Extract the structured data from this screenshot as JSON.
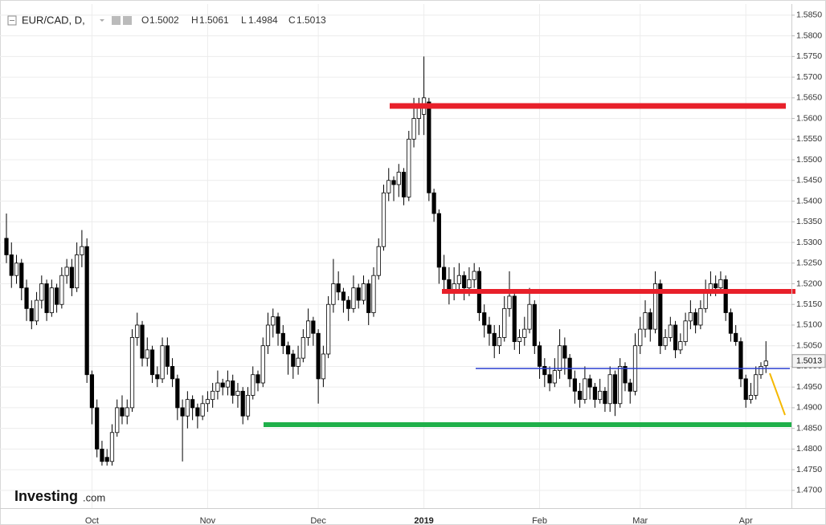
{
  "chart_data": {
    "type": "candlestick",
    "title": "EUR/CAD, D,",
    "ohlc_labels": [
      "O",
      "H",
      "L",
      "C"
    ],
    "up_color": "#ffffff",
    "down_color": "#000000",
    "grid": true,
    "logo": "Investing",
    "logo_suffix": ".com",
    "ylim": [
      1.4657,
      1.5877
    ],
    "yticks": [
      {
        "value": 1.47,
        "label": "1.4700"
      },
      {
        "value": 1.475,
        "label": "1.4750"
      },
      {
        "value": 1.48,
        "label": "1.4800"
      },
      {
        "value": 1.485,
        "label": "1.4850"
      },
      {
        "value": 1.49,
        "label": "1.4900"
      },
      {
        "value": 1.495,
        "label": "1.4950"
      },
      {
        "value": 1.5,
        "label": "1.5000"
      },
      {
        "value": 1.505,
        "label": "1.5050"
      },
      {
        "value": 1.51,
        "label": "1.5100"
      },
      {
        "value": 1.515,
        "label": "1.5150"
      },
      {
        "value": 1.52,
        "label": "1.5200"
      },
      {
        "value": 1.525,
        "label": "1.5250"
      },
      {
        "value": 1.53,
        "label": "1.5300"
      },
      {
        "value": 1.535,
        "label": "1.5350"
      },
      {
        "value": 1.54,
        "label": "1.5400"
      },
      {
        "value": 1.545,
        "label": "1.5450"
      },
      {
        "value": 1.55,
        "label": "1.5500"
      },
      {
        "value": 1.555,
        "label": "1.5550"
      },
      {
        "value": 1.56,
        "label": "1.5600"
      },
      {
        "value": 1.565,
        "label": "1.5650"
      },
      {
        "value": 1.57,
        "label": "1.5700"
      },
      {
        "value": 1.575,
        "label": "1.5750"
      },
      {
        "value": 1.58,
        "label": "1.5800"
      },
      {
        "value": 1.585,
        "label": "1.5850"
      }
    ],
    "categories": [
      null,
      null,
      null,
      null,
      null,
      null,
      null,
      null,
      null,
      null,
      null,
      null,
      null,
      null,
      null,
      null,
      null,
      "Oct",
      null,
      null,
      null,
      null,
      null,
      null,
      null,
      null,
      null,
      null,
      null,
      null,
      null,
      null,
      null,
      null,
      null,
      null,
      null,
      null,
      null,
      null,
      "Nov",
      null,
      null,
      null,
      null,
      null,
      null,
      null,
      null,
      null,
      null,
      null,
      null,
      null,
      null,
      null,
      null,
      null,
      null,
      null,
      null,
      null,
      "Dec",
      null,
      null,
      null,
      null,
      null,
      null,
      null,
      null,
      null,
      null,
      null,
      null,
      null,
      null,
      null,
      null,
      null,
      null,
      null,
      null,
      "2019",
      null,
      null,
      null,
      null,
      null,
      null,
      null,
      null,
      null,
      null,
      null,
      null,
      null,
      null,
      null,
      null,
      null,
      null,
      null,
      null,
      null,
      null,
      "Feb",
      null,
      null,
      null,
      null,
      null,
      null,
      null,
      null,
      null,
      null,
      null,
      null,
      null,
      null,
      null,
      null,
      null,
      null,
      null,
      "Mar",
      null,
      null,
      null,
      null,
      null,
      null,
      null,
      null,
      null,
      null,
      null,
      null,
      null,
      null,
      null,
      null,
      null,
      null,
      null,
      null,
      "Apr",
      null,
      null,
      null,
      null
    ],
    "ohlc": [
      [
        1.531,
        1.537,
        1.525,
        1.527
      ],
      [
        1.527,
        1.53,
        1.519,
        1.522
      ],
      [
        1.522,
        1.527,
        1.52,
        1.525
      ],
      [
        1.525,
        1.526,
        1.516,
        1.519
      ],
      [
        1.519,
        1.521,
        1.511,
        1.514
      ],
      [
        1.514,
        1.516,
        1.509,
        1.511
      ],
      [
        1.511,
        1.518,
        1.51,
        1.516
      ],
      [
        1.516,
        1.522,
        1.514,
        1.52
      ],
      [
        1.52,
        1.521,
        1.511,
        1.513
      ],
      [
        1.513,
        1.521,
        1.512,
        1.519
      ],
      [
        1.519,
        1.52,
        1.513,
        1.515
      ],
      [
        1.515,
        1.524,
        1.514,
        1.522
      ],
      [
        1.522,
        1.526,
        1.52,
        1.524
      ],
      [
        1.524,
        1.526,
        1.517,
        1.519
      ],
      [
        1.519,
        1.53,
        1.518,
        1.527
      ],
      [
        1.527,
        1.533,
        1.524,
        1.529
      ],
      [
        1.529,
        1.531,
        1.496,
        1.498
      ],
      [
        1.498,
        1.499,
        1.486,
        1.49
      ],
      [
        1.49,
        1.492,
        1.478,
        1.48
      ],
      [
        1.48,
        1.482,
        1.476,
        1.477
      ],
      [
        1.478,
        1.48,
        1.476,
        1.477
      ],
      [
        1.477,
        1.486,
        1.476,
        1.484
      ],
      [
        1.484,
        1.492,
        1.483,
        1.49
      ],
      [
        1.49,
        1.493,
        1.486,
        1.488
      ],
      [
        1.488,
        1.492,
        1.486,
        1.49
      ],
      [
        1.49,
        1.509,
        1.489,
        1.507
      ],
      [
        1.507,
        1.513,
        1.505,
        1.51
      ],
      [
        1.51,
        1.511,
        1.5,
        1.502
      ],
      [
        1.502,
        1.507,
        1.5,
        1.504
      ],
      [
        1.504,
        1.505,
        1.496,
        1.498
      ],
      [
        1.498,
        1.5,
        1.495,
        1.497
      ],
      [
        1.497,
        1.507,
        1.496,
        1.505
      ],
      [
        1.505,
        1.507,
        1.498,
        1.5
      ],
      [
        1.5,
        1.502,
        1.495,
        1.497
      ],
      [
        1.497,
        1.498,
        1.487,
        1.49
      ],
      [
        1.49,
        1.492,
        1.477,
        1.488
      ],
      [
        1.488,
        1.494,
        1.485,
        1.492
      ],
      [
        1.492,
        1.493,
        1.487,
        1.49
      ],
      [
        1.49,
        1.491,
        1.485,
        1.488
      ],
      [
        1.488,
        1.493,
        1.487,
        1.491
      ],
      [
        1.491,
        1.494,
        1.489,
        1.492
      ],
      [
        1.492,
        1.496,
        1.49,
        1.494
      ],
      [
        1.494,
        1.499,
        1.492,
        1.496
      ],
      [
        1.496,
        1.497,
        1.493,
        1.495
      ],
      [
        1.495,
        1.499,
        1.493,
        1.4965
      ],
      [
        1.4965,
        1.498,
        1.491,
        1.493
      ],
      [
        1.493,
        1.496,
        1.49,
        1.494
      ],
      [
        1.494,
        1.495,
        1.486,
        1.488
      ],
      [
        1.488,
        1.495,
        1.487,
        1.493
      ],
      [
        1.493,
        1.5,
        1.492,
        1.498
      ],
      [
        1.498,
        1.499,
        1.494,
        1.496
      ],
      [
        1.496,
        1.507,
        1.495,
        1.505
      ],
      [
        1.505,
        1.513,
        1.503,
        1.51
      ],
      [
        1.51,
        1.514,
        1.507,
        1.512
      ],
      [
        1.512,
        1.513,
        1.505,
        1.508
      ],
      [
        1.508,
        1.51,
        1.503,
        1.505
      ],
      [
        1.505,
        1.506,
        1.498,
        1.503
      ],
      [
        1.503,
        1.504,
        1.497,
        1.5
      ],
      [
        1.5,
        1.505,
        1.498,
        1.502
      ],
      [
        1.502,
        1.509,
        1.501,
        1.507
      ],
      [
        1.507,
        1.514,
        1.505,
        1.511
      ],
      [
        1.511,
        1.512,
        1.505,
        1.508
      ],
      [
        1.508,
        1.509,
        1.491,
        1.497
      ],
      [
        1.497,
        1.505,
        1.495,
        1.503
      ],
      [
        1.503,
        1.517,
        1.502,
        1.515
      ],
      [
        1.515,
        1.526,
        1.513,
        1.52
      ],
      [
        1.52,
        1.523,
        1.516,
        1.518
      ],
      [
        1.518,
        1.519,
        1.513,
        1.516
      ],
      [
        1.516,
        1.517,
        1.511,
        1.514
      ],
      [
        1.514,
        1.522,
        1.513,
        1.519
      ],
      [
        1.519,
        1.52,
        1.514,
        1.516
      ],
      [
        1.516,
        1.522,
        1.515,
        1.52
      ],
      [
        1.52,
        1.521,
        1.51,
        1.513
      ],
      [
        1.513,
        1.524,
        1.512,
        1.522
      ],
      [
        1.522,
        1.531,
        1.521,
        1.529
      ],
      [
        1.529,
        1.544,
        1.528,
        1.542
      ],
      [
        1.542,
        1.548,
        1.54,
        1.545
      ],
      [
        1.545,
        1.546,
        1.54,
        1.544
      ],
      [
        1.544,
        1.549,
        1.541,
        1.547
      ],
      [
        1.547,
        1.548,
        1.539,
        1.541
      ],
      [
        1.541,
        1.557,
        1.54,
        1.555
      ],
      [
        1.555,
        1.565,
        1.553,
        1.56
      ],
      [
        1.56,
        1.565,
        1.556,
        1.563
      ],
      [
        1.561,
        1.575,
        1.556,
        1.565
      ],
      [
        1.564,
        1.565,
        1.54,
        1.542
      ],
      [
        1.542,
        1.543,
        1.535,
        1.537
      ],
      [
        1.537,
        1.538,
        1.52,
        1.524
      ],
      [
        1.524,
        1.527,
        1.518,
        1.521
      ],
      [
        1.521,
        1.524,
        1.515,
        1.518
      ],
      [
        1.518,
        1.524,
        1.516,
        1.52
      ],
      [
        1.52,
        1.525,
        1.518,
        1.522
      ],
      [
        1.522,
        1.523,
        1.516,
        1.519
      ],
      [
        1.519,
        1.524,
        1.517,
        1.521
      ],
      [
        1.521,
        1.525,
        1.519,
        1.523
      ],
      [
        1.523,
        1.524,
        1.511,
        1.513
      ],
      [
        1.513,
        1.515,
        1.507,
        1.51
      ],
      [
        1.51,
        1.512,
        1.505,
        1.508
      ],
      [
        1.508,
        1.51,
        1.502,
        1.505
      ],
      [
        1.505,
        1.51,
        1.503,
        1.507
      ],
      [
        1.507,
        1.517,
        1.506,
        1.514
      ],
      [
        1.514,
        1.523,
        1.512,
        1.517
      ],
      [
        1.517,
        1.518,
        1.504,
        1.506
      ],
      [
        1.506,
        1.509,
        1.503,
        1.507
      ],
      [
        1.507,
        1.512,
        1.505,
        1.509
      ],
      [
        1.509,
        1.519,
        1.508,
        1.515
      ],
      [
        1.515,
        1.516,
        1.503,
        1.505
      ],
      [
        1.505,
        1.506,
        1.497,
        1.5
      ],
      [
        1.5,
        1.502,
        1.495,
        1.498
      ],
      [
        1.498,
        1.5,
        1.494,
        1.496
      ],
      [
        1.496,
        1.502,
        1.495,
        1.499
      ],
      [
        1.499,
        1.509,
        1.497,
        1.505
      ],
      [
        1.505,
        1.507,
        1.498,
        1.502
      ],
      [
        1.502,
        1.503,
        1.495,
        1.497
      ],
      [
        1.497,
        1.499,
        1.491,
        1.494
      ],
      [
        1.494,
        1.496,
        1.49,
        1.492
      ],
      [
        1.492,
        1.5,
        1.491,
        1.497
      ],
      [
        1.497,
        1.498,
        1.492,
        1.495
      ],
      [
        1.495,
        1.496,
        1.49,
        1.492
      ],
      [
        1.492,
        1.497,
        1.491,
        1.494
      ],
      [
        1.494,
        1.495,
        1.489,
        1.491
      ],
      [
        1.491,
        1.5,
        1.489,
        1.498
      ],
      [
        1.498,
        1.499,
        1.488,
        1.491
      ],
      [
        1.491,
        1.502,
        1.49,
        1.5
      ],
      [
        1.5,
        1.501,
        1.494,
        1.496
      ],
      [
        1.496,
        1.497,
        1.491,
        1.494
      ],
      [
        1.494,
        1.508,
        1.493,
        1.505
      ],
      [
        1.505,
        1.512,
        1.503,
        1.509
      ],
      [
        1.509,
        1.516,
        1.507,
        1.513
      ],
      [
        1.513,
        1.514,
        1.506,
        1.509
      ],
      [
        1.509,
        1.523,
        1.508,
        1.52
      ],
      [
        1.52,
        1.521,
        1.503,
        1.505
      ],
      [
        1.505,
        1.509,
        1.504,
        1.507
      ],
      [
        1.507,
        1.512,
        1.506,
        1.51
      ],
      [
        1.51,
        1.511,
        1.502,
        1.504
      ],
      [
        1.504,
        1.508,
        1.503,
        1.506
      ],
      [
        1.506,
        1.513,
        1.505,
        1.511
      ],
      [
        1.511,
        1.516,
        1.509,
        1.513
      ],
      [
        1.513,
        1.514,
        1.508,
        1.51
      ],
      [
        1.51,
        1.516,
        1.509,
        1.514
      ],
      [
        1.514,
        1.521,
        1.513,
        1.518
      ],
      [
        1.518,
        1.523,
        1.517,
        1.52
      ],
      [
        1.52,
        1.522,
        1.517,
        1.519
      ],
      [
        1.519,
        1.523,
        1.518,
        1.521
      ],
      [
        1.521,
        1.522,
        1.511,
        1.513
      ],
      [
        1.513,
        1.514,
        1.506,
        1.508
      ],
      [
        1.508,
        1.51,
        1.505,
        1.506
      ],
      [
        1.506,
        1.507,
        1.495,
        1.497
      ],
      [
        1.497,
        1.498,
        1.49,
        1.492
      ],
      [
        1.492,
        1.496,
        1.491,
        1.493
      ],
      [
        1.493,
        1.5,
        1.492,
        1.498
      ],
      [
        1.498,
        1.501,
        1.497,
        1.5
      ],
      [
        1.5002,
        1.5061,
        1.4984,
        1.5013
      ]
    ]
  }
}
